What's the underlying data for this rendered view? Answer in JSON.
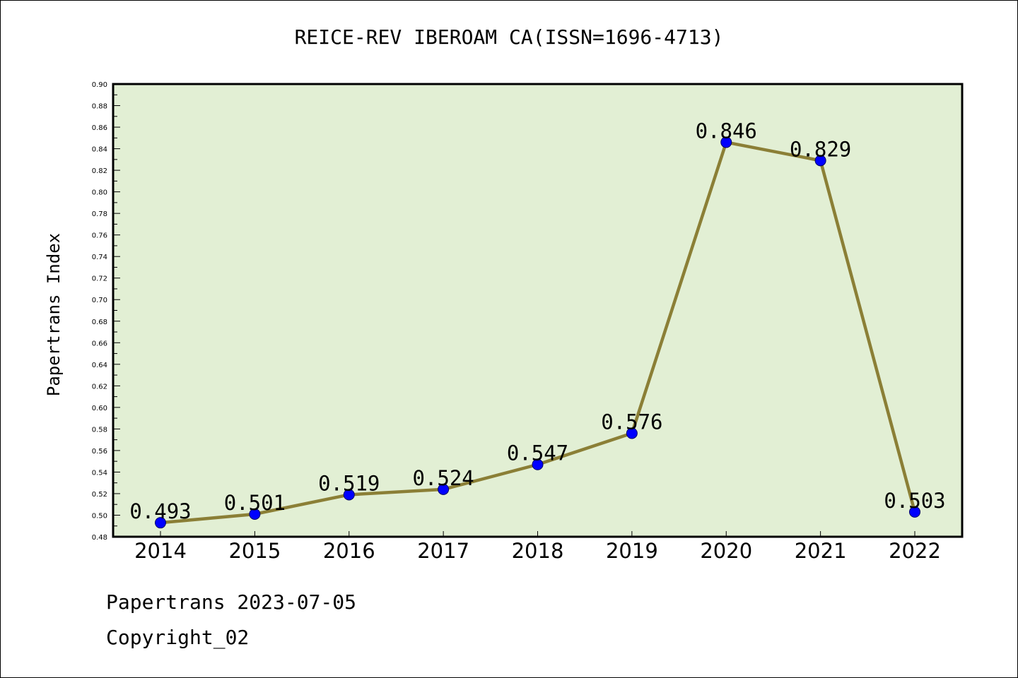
{
  "colors": {
    "plot_background": "#e2efd4",
    "line": "#8b7f36",
    "marker": "#0000ff",
    "frame": "#000000"
  },
  "footer": {
    "date_line": "Papertrans 2023-07-05",
    "copyright": "Copyright_02"
  },
  "chart_data": {
    "type": "line",
    "title": "REICE-REV IBEROAM CA(ISSN=1696-4713)",
    "xlabel": "",
    "ylabel": "Papertrans Index",
    "categories": [
      "2014",
      "2015",
      "2016",
      "2017",
      "2018",
      "2019",
      "2020",
      "2021",
      "2022"
    ],
    "series": [
      {
        "values": [
          0.493,
          0.501,
          0.519,
          0.524,
          0.547,
          0.576,
          0.846,
          0.829,
          0.503
        ],
        "labels": [
          "0.493",
          "0.501",
          "0.519",
          "0.524",
          "0.547",
          "0.576",
          "0.846",
          "0.829",
          "0.503"
        ]
      }
    ],
    "ylim": [
      0.48,
      0.9
    ],
    "yticks": [
      "0.48",
      "0.50",
      "0.52",
      "0.54",
      "0.56",
      "0.58",
      "0.60",
      "0.62",
      "0.64",
      "0.66",
      "0.68",
      "0.70",
      "0.72",
      "0.74",
      "0.76",
      "0.78",
      "0.80",
      "0.82",
      "0.84",
      "0.86",
      "0.88",
      "0.90"
    ],
    "grid": false,
    "legend": "none"
  }
}
